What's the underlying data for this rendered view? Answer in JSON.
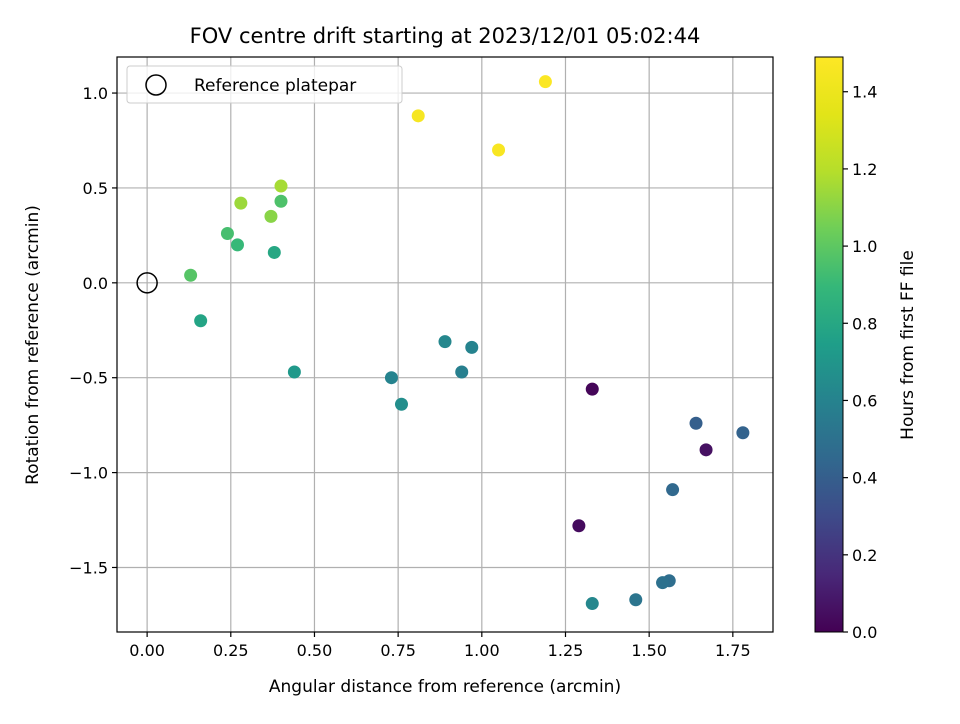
{
  "chart_data": {
    "type": "scatter",
    "title": "FOV centre drift starting at 2023/12/01 05:02:44",
    "xlabel": "Angular distance from reference (arcmin)",
    "ylabel": "Rotation from reference (arcmin)",
    "xlim": [
      -0.09,
      1.87
    ],
    "ylim": [
      -1.84,
      1.19
    ],
    "xticks": [
      "0.00",
      "0.25",
      "0.50",
      "0.75",
      "1.00",
      "1.25",
      "1.50",
      "1.75"
    ],
    "xtick_values": [
      0,
      0.25,
      0.5,
      0.75,
      1.0,
      1.25,
      1.5,
      1.75
    ],
    "yticks": [
      "1.0",
      "0.5",
      "0.0",
      "−0.5",
      "−1.0",
      "−1.5"
    ],
    "ytick_values": [
      1.0,
      0.5,
      0.0,
      -0.5,
      -1.0,
      -1.5
    ],
    "grid": true,
    "legend": {
      "placement": "upper-left",
      "entries": [
        "Reference platepar"
      ]
    },
    "reference_point": {
      "x": 0.0,
      "y": 0.0,
      "marker": "open-circle"
    },
    "colorbar": {
      "label": "Hours from first FF file",
      "colormap": "viridis",
      "range": [
        0.0,
        1.49
      ],
      "ticks": [
        "0.0",
        "0.2",
        "0.4",
        "0.6",
        "0.8",
        "1.0",
        "1.2",
        "1.4"
      ],
      "tick_values": [
        0.0,
        0.2,
        0.4,
        0.6,
        0.8,
        1.0,
        1.2,
        1.4
      ]
    },
    "points": [
      {
        "x": 1.33,
        "y": -0.56,
        "hours": 0.02
      },
      {
        "x": 1.29,
        "y": -1.28,
        "hours": 0.04
      },
      {
        "x": 1.67,
        "y": -0.88,
        "hours": 0.06
      },
      {
        "x": 1.64,
        "y": -0.74,
        "hours": 0.4
      },
      {
        "x": 1.78,
        "y": -0.79,
        "hours": 0.42
      },
      {
        "x": 1.57,
        "y": -1.09,
        "hours": 0.45
      },
      {
        "x": 1.56,
        "y": -1.57,
        "hours": 0.48
      },
      {
        "x": 1.54,
        "y": -1.58,
        "hours": 0.5
      },
      {
        "x": 1.46,
        "y": -1.67,
        "hours": 0.52
      },
      {
        "x": 1.33,
        "y": -1.69,
        "hours": 0.62
      },
      {
        "x": 0.97,
        "y": -0.34,
        "hours": 0.6
      },
      {
        "x": 0.94,
        "y": -0.47,
        "hours": 0.58
      },
      {
        "x": 0.89,
        "y": -0.31,
        "hours": 0.62
      },
      {
        "x": 0.73,
        "y": -0.5,
        "hours": 0.6
      },
      {
        "x": 0.76,
        "y": -0.64,
        "hours": 0.66
      },
      {
        "x": 0.44,
        "y": -0.47,
        "hours": 0.72
      },
      {
        "x": 0.16,
        "y": -0.2,
        "hours": 0.78
      },
      {
        "x": 0.38,
        "y": 0.16,
        "hours": 0.8
      },
      {
        "x": 0.27,
        "y": 0.2,
        "hours": 0.9
      },
      {
        "x": 0.24,
        "y": 0.26,
        "hours": 0.94
      },
      {
        "x": 0.13,
        "y": 0.04,
        "hours": 0.98
      },
      {
        "x": 0.4,
        "y": 0.43,
        "hours": 0.96
      },
      {
        "x": 0.37,
        "y": 0.35,
        "hours": 1.1
      },
      {
        "x": 0.28,
        "y": 0.42,
        "hours": 1.14
      },
      {
        "x": 0.4,
        "y": 0.51,
        "hours": 1.16
      },
      {
        "x": 0.81,
        "y": 0.88,
        "hours": 1.45
      },
      {
        "x": 1.05,
        "y": 0.7,
        "hours": 1.46
      },
      {
        "x": 1.19,
        "y": 1.06,
        "hours": 1.48
      }
    ]
  }
}
